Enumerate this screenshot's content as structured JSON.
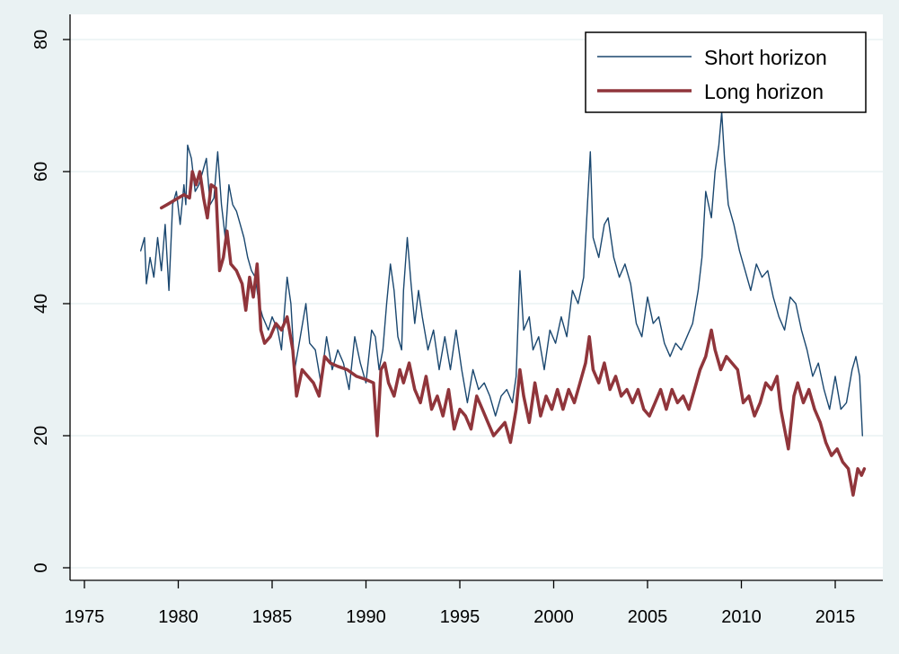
{
  "chart_data": {
    "type": "line",
    "title": "",
    "xlabel": "",
    "ylabel": "",
    "xlim": [
      1974,
      2017
    ],
    "ylim": [
      0,
      80
    ],
    "x_ticks": [
      1975,
      1980,
      1985,
      1990,
      1995,
      2000,
      2005,
      2010,
      2015
    ],
    "x_tick_labels": [
      "1975",
      "1980",
      "1985",
      "1990",
      "1995",
      "2000",
      "2005",
      "2010",
      "2015"
    ],
    "y_ticks": [
      0,
      20,
      40,
      60,
      80
    ],
    "y_tick_labels": [
      "0",
      "20",
      "40",
      "60",
      "80"
    ],
    "grid": "horizontal",
    "legend_position": "top-right",
    "series": [
      {
        "name": "Short horizon",
        "color": "#1a476f",
        "points": [
          [
            1978.0,
            48
          ],
          [
            1978.2,
            50
          ],
          [
            1978.3,
            43
          ],
          [
            1978.5,
            47
          ],
          [
            1978.7,
            44
          ],
          [
            1978.9,
            50
          ],
          [
            1979.1,
            45
          ],
          [
            1979.3,
            52
          ],
          [
            1979.5,
            42
          ],
          [
            1979.7,
            55
          ],
          [
            1979.9,
            57
          ],
          [
            1980.1,
            52
          ],
          [
            1980.3,
            58
          ],
          [
            1980.4,
            55
          ],
          [
            1980.5,
            64
          ],
          [
            1980.7,
            62
          ],
          [
            1980.9,
            57
          ],
          [
            1981.1,
            58
          ],
          [
            1981.3,
            60
          ],
          [
            1981.5,
            62
          ],
          [
            1981.7,
            55
          ],
          [
            1981.9,
            56
          ],
          [
            1982.1,
            63
          ],
          [
            1982.3,
            55
          ],
          [
            1982.5,
            50
          ],
          [
            1982.7,
            58
          ],
          [
            1982.9,
            55
          ],
          [
            1983.1,
            54
          ],
          [
            1983.3,
            52
          ],
          [
            1983.5,
            50
          ],
          [
            1983.7,
            47
          ],
          [
            1983.9,
            45
          ],
          [
            1984.1,
            44
          ],
          [
            1984.3,
            40
          ],
          [
            1984.5,
            38
          ],
          [
            1984.8,
            36
          ],
          [
            1985.0,
            38
          ],
          [
            1985.3,
            36
          ],
          [
            1985.5,
            33
          ],
          [
            1985.8,
            44
          ],
          [
            1986.0,
            40
          ],
          [
            1986.2,
            30
          ],
          [
            1986.5,
            35
          ],
          [
            1986.8,
            40
          ],
          [
            1987.0,
            34
          ],
          [
            1987.3,
            33
          ],
          [
            1987.6,
            28
          ],
          [
            1987.9,
            35
          ],
          [
            1988.2,
            30
          ],
          [
            1988.5,
            33
          ],
          [
            1988.8,
            31
          ],
          [
            1989.1,
            27
          ],
          [
            1989.4,
            35
          ],
          [
            1989.7,
            31
          ],
          [
            1990.0,
            28
          ],
          [
            1990.3,
            36
          ],
          [
            1990.5,
            35
          ],
          [
            1990.7,
            30
          ],
          [
            1990.9,
            33
          ],
          [
            1991.1,
            40
          ],
          [
            1991.3,
            46
          ],
          [
            1991.5,
            42
          ],
          [
            1991.7,
            35
          ],
          [
            1991.9,
            33
          ],
          [
            1992.0,
            42
          ],
          [
            1992.2,
            50
          ],
          [
            1992.4,
            43
          ],
          [
            1992.6,
            37
          ],
          [
            1992.8,
            42
          ],
          [
            1993.0,
            38
          ],
          [
            1993.3,
            33
          ],
          [
            1993.6,
            36
          ],
          [
            1993.9,
            30
          ],
          [
            1994.2,
            35
          ],
          [
            1994.5,
            30
          ],
          [
            1994.8,
            36
          ],
          [
            1995.1,
            30
          ],
          [
            1995.4,
            25
          ],
          [
            1995.7,
            30
          ],
          [
            1996.0,
            27
          ],
          [
            1996.3,
            28
          ],
          [
            1996.6,
            26
          ],
          [
            1996.9,
            23
          ],
          [
            1997.2,
            26
          ],
          [
            1997.5,
            27
          ],
          [
            1997.8,
            25
          ],
          [
            1998.0,
            29
          ],
          [
            1998.2,
            45
          ],
          [
            1998.4,
            36
          ],
          [
            1998.7,
            38
          ],
          [
            1998.9,
            33
          ],
          [
            1999.2,
            35
          ],
          [
            1999.5,
            30
          ],
          [
            1999.8,
            36
          ],
          [
            2000.1,
            34
          ],
          [
            2000.4,
            38
          ],
          [
            2000.7,
            35
          ],
          [
            2001.0,
            42
          ],
          [
            2001.3,
            40
          ],
          [
            2001.6,
            44
          ],
          [
            2001.8,
            55
          ],
          [
            2001.95,
            63
          ],
          [
            2002.1,
            50
          ],
          [
            2002.4,
            47
          ],
          [
            2002.7,
            52
          ],
          [
            2002.9,
            53
          ],
          [
            2003.2,
            47
          ],
          [
            2003.5,
            44
          ],
          [
            2003.8,
            46
          ],
          [
            2004.1,
            43
          ],
          [
            2004.4,
            37
          ],
          [
            2004.7,
            35
          ],
          [
            2005.0,
            41
          ],
          [
            2005.3,
            37
          ],
          [
            2005.6,
            38
          ],
          [
            2005.9,
            34
          ],
          [
            2006.2,
            32
          ],
          [
            2006.5,
            34
          ],
          [
            2006.8,
            33
          ],
          [
            2007.1,
            35
          ],
          [
            2007.4,
            37
          ],
          [
            2007.7,
            42
          ],
          [
            2007.9,
            47
          ],
          [
            2008.1,
            57
          ],
          [
            2008.4,
            53
          ],
          [
            2008.6,
            60
          ],
          [
            2008.8,
            64
          ],
          [
            2008.95,
            69
          ],
          [
            2009.1,
            62
          ],
          [
            2009.3,
            55
          ],
          [
            2009.6,
            52
          ],
          [
            2009.9,
            48
          ],
          [
            2010.2,
            45
          ],
          [
            2010.5,
            42
          ],
          [
            2010.8,
            46
          ],
          [
            2011.1,
            44
          ],
          [
            2011.4,
            45
          ],
          [
            2011.7,
            41
          ],
          [
            2012.0,
            38
          ],
          [
            2012.3,
            36
          ],
          [
            2012.6,
            41
          ],
          [
            2012.9,
            40
          ],
          [
            2013.2,
            36
          ],
          [
            2013.5,
            33
          ],
          [
            2013.8,
            29
          ],
          [
            2014.1,
            31
          ],
          [
            2014.4,
            27
          ],
          [
            2014.7,
            24
          ],
          [
            2015.0,
            29
          ],
          [
            2015.3,
            24
          ],
          [
            2015.6,
            25
          ],
          [
            2015.9,
            30
          ],
          [
            2016.1,
            32
          ],
          [
            2016.3,
            29
          ],
          [
            2016.45,
            20
          ]
        ]
      },
      {
        "name": "Long horizon",
        "color": "#90353b",
        "points": [
          [
            1979.1,
            54.5
          ],
          [
            1979.4,
            55
          ],
          [
            1979.7,
            55.5
          ],
          [
            1980.0,
            56
          ],
          [
            1980.3,
            56.5
          ],
          [
            1980.6,
            56
          ],
          [
            1980.75,
            60
          ],
          [
            1980.95,
            58
          ],
          [
            1981.15,
            60
          ],
          [
            1981.35,
            56
          ],
          [
            1981.55,
            53
          ],
          [
            1981.75,
            58
          ],
          [
            1982.0,
            57.5
          ],
          [
            1982.2,
            45
          ],
          [
            1982.4,
            47
          ],
          [
            1982.6,
            51
          ],
          [
            1982.8,
            46
          ],
          [
            1983.1,
            45
          ],
          [
            1983.4,
            43
          ],
          [
            1983.6,
            39
          ],
          [
            1983.8,
            44
          ],
          [
            1984.0,
            41
          ],
          [
            1984.2,
            46
          ],
          [
            1984.4,
            36
          ],
          [
            1984.6,
            34
          ],
          [
            1984.9,
            35
          ],
          [
            1985.2,
            37
          ],
          [
            1985.5,
            36
          ],
          [
            1985.8,
            38
          ],
          [
            1986.1,
            33
          ],
          [
            1986.3,
            26
          ],
          [
            1986.6,
            30
          ],
          [
            1986.9,
            29
          ],
          [
            1987.2,
            28
          ],
          [
            1987.5,
            26
          ],
          [
            1987.8,
            32
          ],
          [
            1988.1,
            31
          ],
          [
            1988.5,
            30.5
          ],
          [
            1989.0,
            30
          ],
          [
            1989.5,
            29
          ],
          [
            1990.0,
            28.5
          ],
          [
            1990.4,
            28
          ],
          [
            1990.6,
            20
          ],
          [
            1990.8,
            30
          ],
          [
            1991.0,
            31
          ],
          [
            1991.2,
            28
          ],
          [
            1991.5,
            26
          ],
          [
            1991.8,
            30
          ],
          [
            1992.0,
            28
          ],
          [
            1992.3,
            31
          ],
          [
            1992.6,
            27
          ],
          [
            1992.9,
            25
          ],
          [
            1993.2,
            29
          ],
          [
            1993.5,
            24
          ],
          [
            1993.8,
            26
          ],
          [
            1994.1,
            23
          ],
          [
            1994.4,
            27
          ],
          [
            1994.7,
            21
          ],
          [
            1995.0,
            24
          ],
          [
            1995.3,
            23
          ],
          [
            1995.6,
            21
          ],
          [
            1995.9,
            26
          ],
          [
            1996.2,
            24
          ],
          [
            1996.5,
            22
          ],
          [
            1996.8,
            20
          ],
          [
            1997.1,
            21
          ],
          [
            1997.4,
            22
          ],
          [
            1997.7,
            19
          ],
          [
            1998.0,
            24
          ],
          [
            1998.2,
            30
          ],
          [
            1998.4,
            26
          ],
          [
            1998.7,
            22
          ],
          [
            1999.0,
            28
          ],
          [
            1999.3,
            23
          ],
          [
            1999.6,
            26
          ],
          [
            1999.9,
            24
          ],
          [
            2000.2,
            27
          ],
          [
            2000.5,
            24
          ],
          [
            2000.8,
            27
          ],
          [
            2001.1,
            25
          ],
          [
            2001.4,
            28
          ],
          [
            2001.7,
            31
          ],
          [
            2001.9,
            35
          ],
          [
            2002.1,
            30
          ],
          [
            2002.4,
            28
          ],
          [
            2002.7,
            31
          ],
          [
            2003.0,
            27
          ],
          [
            2003.3,
            29
          ],
          [
            2003.6,
            26
          ],
          [
            2003.9,
            27
          ],
          [
            2004.2,
            25
          ],
          [
            2004.5,
            27
          ],
          [
            2004.8,
            24
          ],
          [
            2005.1,
            23
          ],
          [
            2005.4,
            25
          ],
          [
            2005.7,
            27
          ],
          [
            2006.0,
            24
          ],
          [
            2006.3,
            27
          ],
          [
            2006.6,
            25
          ],
          [
            2006.9,
            26
          ],
          [
            2007.2,
            24
          ],
          [
            2007.5,
            27
          ],
          [
            2007.8,
            30
          ],
          [
            2008.1,
            32
          ],
          [
            2008.4,
            36
          ],
          [
            2008.6,
            33
          ],
          [
            2008.9,
            30
          ],
          [
            2009.2,
            32
          ],
          [
            2009.5,
            31
          ],
          [
            2009.8,
            30
          ],
          [
            2010.1,
            25
          ],
          [
            2010.4,
            26
          ],
          [
            2010.7,
            23
          ],
          [
            2011.0,
            25
          ],
          [
            2011.3,
            28
          ],
          [
            2011.6,
            27
          ],
          [
            2011.9,
            29
          ],
          [
            2012.1,
            24
          ],
          [
            2012.3,
            21
          ],
          [
            2012.5,
            18
          ],
          [
            2012.8,
            26
          ],
          [
            2013.0,
            28
          ],
          [
            2013.3,
            25
          ],
          [
            2013.6,
            27
          ],
          [
            2013.9,
            24
          ],
          [
            2014.2,
            22
          ],
          [
            2014.5,
            19
          ],
          [
            2014.8,
            17
          ],
          [
            2015.1,
            18
          ],
          [
            2015.4,
            16
          ],
          [
            2015.7,
            15
          ],
          [
            2015.95,
            11
          ],
          [
            2016.2,
            15
          ],
          [
            2016.4,
            14
          ],
          [
            2016.55,
            15
          ]
        ]
      }
    ]
  }
}
